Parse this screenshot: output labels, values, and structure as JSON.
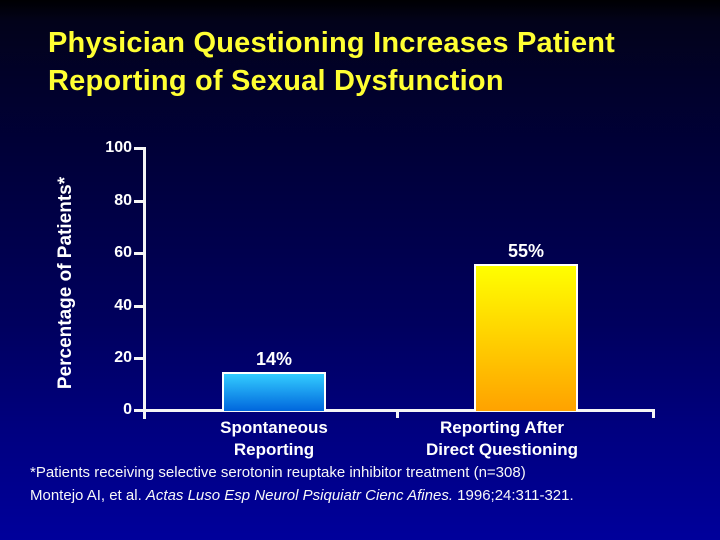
{
  "slide": {
    "title_line1": "Physician Questioning Increases Patient",
    "title_line2": "Reporting of Sexual Dysfunction",
    "footnote_line1": "*Patients receiving selective serotonin reuptake inhibitor treatment (n=308)",
    "citation_prefix": "Montejo AI, et al. ",
    "citation_journal": "Actas Luso Esp Neurol Psiquiatr Cienc Afines.",
    "citation_suffix": " 1996;24:311-321."
  },
  "chart_data": {
    "type": "bar",
    "title": "Physician Questioning Increases Patient Reporting of Sexual Dysfunction",
    "categories": [
      "Spontaneous Reporting",
      "Reporting After Direct Questioning"
    ],
    "categories_lines": [
      [
        "Spontaneous",
        "Reporting"
      ],
      [
        "Reporting After",
        "Direct Questioning"
      ]
    ],
    "values": [
      14,
      55
    ],
    "value_labels": [
      "14%",
      "55%"
    ],
    "xlabel": "",
    "ylabel": "Percentage of Patients*",
    "ylim": [
      0,
      100
    ],
    "yticks": [
      100,
      80,
      60,
      40,
      20,
      0
    ],
    "grid": false,
    "legend": "none",
    "bar_colors": [
      {
        "top": "#33ccff",
        "bottom": "#0066dd"
      },
      {
        "top": "#ffff00",
        "bottom": "#ffa200"
      }
    ]
  },
  "colors": {
    "title_text": "#ffff33",
    "body_text": "#ffffff",
    "axis": "#f5f5f5",
    "background_top": "#000002",
    "background_bottom": "#00009b"
  }
}
